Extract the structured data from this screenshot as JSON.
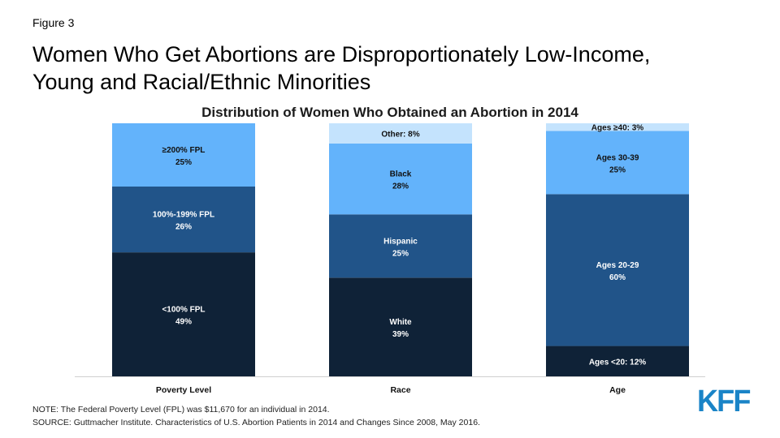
{
  "header": {
    "figure_label": "Figure 3",
    "title_line1": "Women Who Get Abortions are Disproportionately Low-Income,",
    "title_line2": "Young and Racial/Ethnic Minorities"
  },
  "chart_data": {
    "type": "bar",
    "stacked": true,
    "title": "Distribution of Women Who Obtained an Abortion in 2014",
    "categories": [
      "Poverty Level",
      "Race",
      "Age"
    ],
    "ylim": [
      0,
      100
    ],
    "grid": false,
    "legend": "none",
    "stacks": [
      {
        "category": "Poverty Level",
        "segments": [
          {
            "label": "<100% FPL",
            "value": 49,
            "color": "#0f2237"
          },
          {
            "label": "100%-199% FPL",
            "value": 26,
            "color": "#215489"
          },
          {
            "label": "≥200% FPL",
            "value": 25,
            "color": "#63b3fb"
          }
        ]
      },
      {
        "category": "Race",
        "segments": [
          {
            "label": "White",
            "value": 39,
            "color": "#0f2237"
          },
          {
            "label": "Hispanic",
            "value": 25,
            "color": "#215489"
          },
          {
            "label": "Black",
            "value": 28,
            "color": "#63b3fb"
          },
          {
            "label": "Other",
            "value": 8,
            "color": "#c4e3fd"
          }
        ]
      },
      {
        "category": "Age",
        "segments": [
          {
            "label": "Ages <20",
            "value": 12,
            "color": "#0f2237"
          },
          {
            "label": "Ages 20-29",
            "value": 60,
            "color": "#215489"
          },
          {
            "label": "Ages 30-39",
            "value": 25,
            "color": "#63b3fb"
          },
          {
            "label": "Ages ≥40",
            "value": 3,
            "color": "#c4e3fd"
          }
        ]
      }
    ]
  },
  "footer": {
    "note": "NOTE: The Federal Poverty Level (FPL) was $11,670 for an individual in 2014.",
    "source": "SOURCE: Guttmacher Institute. Characteristics of U.S. Abortion Patients in 2014 and Changes Since 2008, May 2016.",
    "logo_text": "KFF"
  },
  "colors": {
    "dark_navy": "#0f2237",
    "mid_blue": "#215489",
    "light_blue": "#63b3fb",
    "pale_blue": "#c4e3fd",
    "logo_blue": "#1a84c7"
  }
}
